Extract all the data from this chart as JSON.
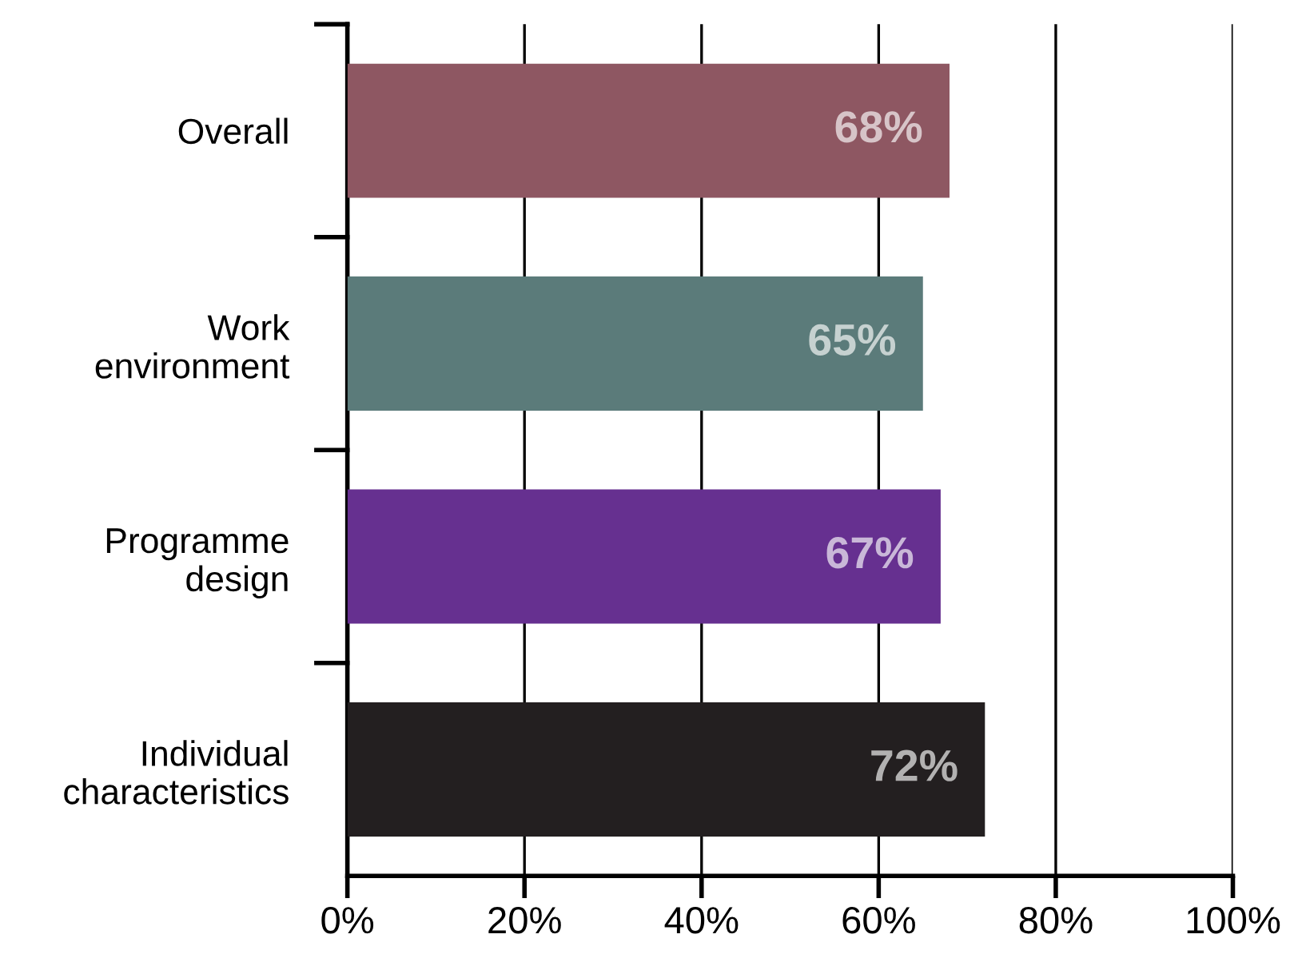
{
  "chart_data": {
    "type": "bar",
    "orientation": "horizontal",
    "categories": [
      "Overall",
      "Work\nenvironment",
      "Programme\ndesign",
      "Individual\ncharacteristics"
    ],
    "values": [
      68,
      65,
      67,
      72
    ],
    "colors": [
      "#8e5762",
      "#5b7b7a",
      "#663090",
      "#231f20"
    ],
    "value_labels": [
      "68%",
      "65%",
      "67%",
      "72%"
    ],
    "xlim": [
      0,
      100
    ],
    "xticks": [
      {
        "value": 0,
        "label": "0%"
      },
      {
        "value": 20,
        "label": "20%"
      },
      {
        "value": 40,
        "label": "40%"
      },
      {
        "value": 60,
        "label": "60%"
      },
      {
        "value": 80,
        "label": "80%"
      },
      {
        "value": 100,
        "label": "100%"
      }
    ],
    "grid": "x"
  }
}
